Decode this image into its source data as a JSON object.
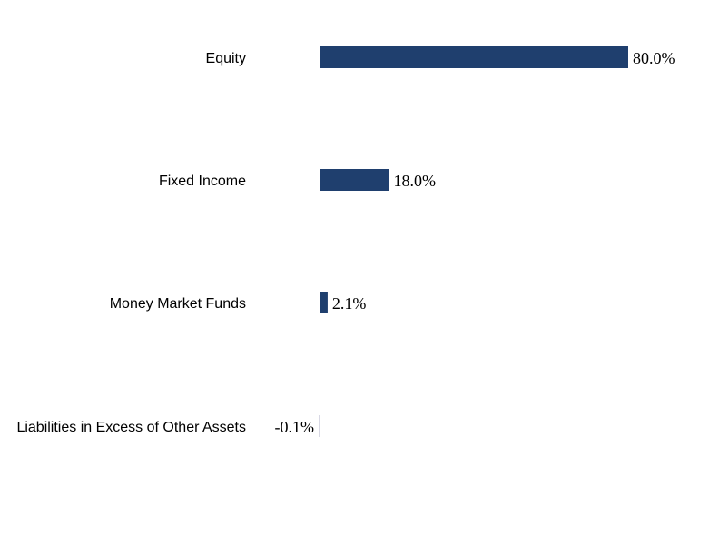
{
  "chart_data": {
    "type": "bar",
    "orientation": "horizontal",
    "categories": [
      "Equity",
      "Fixed Income",
      "Money Market Funds",
      "Liabilities in Excess of Other Assets"
    ],
    "values": [
      80.0,
      18.0,
      2.1,
      -0.1
    ],
    "value_labels": [
      "80.0%",
      "18.0%",
      "2.1%",
      "-0.1%"
    ],
    "unit": "%",
    "bar_color": "#1f3f6e",
    "axis_line_color": "#b0b0c8",
    "grid": false,
    "legend": "none"
  }
}
